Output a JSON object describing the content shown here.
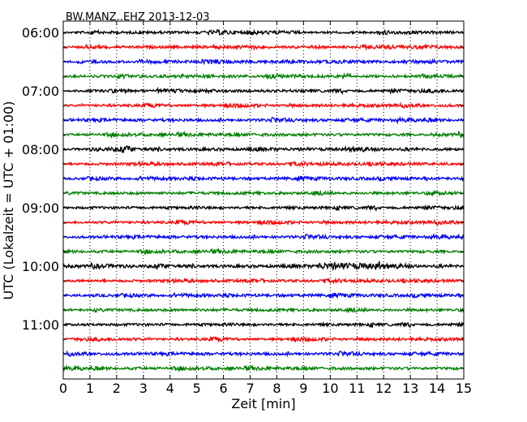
{
  "chart_data": {
    "type": "line",
    "title": "BW.MANZ..EHZ 2013-12-03",
    "xlabel": "Zeit  [min]",
    "ylabel": "UTC (Lokalzeit = UTC + 01:00)",
    "xlim": [
      0,
      15
    ],
    "x_ticks": [
      "0",
      "1",
      "2",
      "3",
      "4",
      "5",
      "6",
      "7",
      "8",
      "9",
      "10",
      "11",
      "12",
      "13",
      "14",
      "15"
    ],
    "y_ticks": [
      "06:00",
      "07:00",
      "08:00",
      "09:00",
      "10:00",
      "11:00"
    ],
    "grid": "vertical dotted",
    "color_cycle": [
      "#000000",
      "#ff0000",
      "#0000ff",
      "#008000"
    ],
    "traces": [
      {
        "start": "06:00"
      },
      {
        "start": "06:15"
      },
      {
        "start": "06:30"
      },
      {
        "start": "06:45"
      },
      {
        "start": "07:00"
      },
      {
        "start": "07:15"
      },
      {
        "start": "07:30"
      },
      {
        "start": "07:45"
      },
      {
        "start": "08:00"
      },
      {
        "start": "08:15"
      },
      {
        "start": "08:30"
      },
      {
        "start": "08:45"
      },
      {
        "start": "09:00"
      },
      {
        "start": "09:15"
      },
      {
        "start": "09:30"
      },
      {
        "start": "09:45"
      },
      {
        "start": "10:00"
      },
      {
        "start": "10:15"
      },
      {
        "start": "10:30"
      },
      {
        "start": "10:45"
      },
      {
        "start": "11:00"
      },
      {
        "start": "11:15"
      },
      {
        "start": "11:30"
      },
      {
        "start": "11:45"
      }
    ]
  }
}
